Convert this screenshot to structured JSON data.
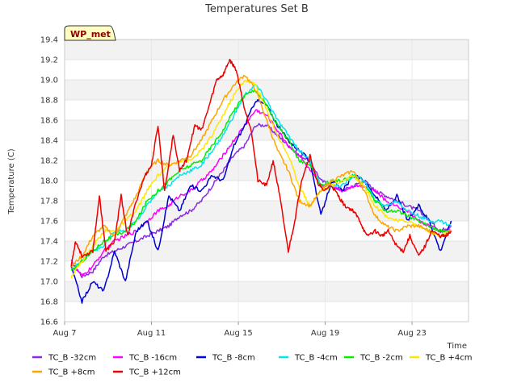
{
  "chart_data": {
    "type": "line",
    "title": "Temperatures Set B",
    "xlabel": "Time",
    "ylabel": "Temperature (C)",
    "badge": "WP_met",
    "xlim": [
      7,
      25.6
    ],
    "ylim": [
      16.6,
      19.4
    ],
    "x_ticks": [
      {
        "x": 7,
        "label": "Aug 7"
      },
      {
        "x": 11,
        "label": "Aug 11"
      },
      {
        "x": 15,
        "label": "Aug 15"
      },
      {
        "x": 19,
        "label": "Aug 19"
      },
      {
        "x": 23,
        "label": "Aug 23"
      }
    ],
    "y_ticks": [
      16.6,
      16.8,
      17.0,
      17.2,
      17.4,
      17.6,
      17.8,
      18.0,
      18.2,
      18.4,
      18.6,
      18.8,
      19.0,
      19.2,
      19.4
    ],
    "grid": true,
    "legend_position": "bottom",
    "series": [
      {
        "name": "TC_B -32cm",
        "color": "#8a2be2",
        "x": [
          7.3,
          7.8,
          8.3,
          8.8,
          9.3,
          9.8,
          10.3,
          10.8,
          11.3,
          11.8,
          12.3,
          12.8,
          13.3,
          13.8,
          14.3,
          14.8,
          15.3,
          15.8,
          16.3,
          16.8,
          17.3,
          17.8,
          18.3,
          18.8,
          19.3,
          19.8,
          20.3,
          20.8,
          21.3,
          21.8,
          22.3,
          22.8,
          23.3,
          23.8,
          24.3,
          24.8
        ],
        "y": [
          17.2,
          17.05,
          17.1,
          17.25,
          17.3,
          17.35,
          17.4,
          17.45,
          17.5,
          17.55,
          17.65,
          17.7,
          17.8,
          17.95,
          18.1,
          18.25,
          18.35,
          18.55,
          18.55,
          18.45,
          18.35,
          18.25,
          18.2,
          18.0,
          17.95,
          17.9,
          17.95,
          18.0,
          17.9,
          17.85,
          17.8,
          17.75,
          17.7,
          17.6,
          17.5,
          17.55
        ]
      },
      {
        "name": "TC_B -16cm",
        "color": "#ff00ff",
        "x": [
          7.3,
          7.8,
          8.3,
          8.8,
          9.3,
          9.8,
          10.3,
          10.8,
          11.3,
          11.8,
          12.3,
          12.8,
          13.3,
          13.8,
          14.3,
          14.8,
          15.3,
          15.8,
          16.3,
          16.8,
          17.3,
          17.8,
          18.3,
          18.8,
          19.3,
          19.8,
          20.3,
          20.8,
          21.3,
          21.8,
          22.3,
          22.8,
          23.3,
          23.8,
          24.3,
          24.8
        ],
        "y": [
          17.2,
          17.05,
          17.15,
          17.3,
          17.4,
          17.45,
          17.5,
          17.6,
          17.7,
          17.75,
          17.85,
          17.9,
          18.0,
          18.1,
          18.25,
          18.4,
          18.55,
          18.7,
          18.65,
          18.5,
          18.35,
          18.25,
          18.1,
          17.95,
          17.95,
          17.9,
          17.95,
          17.95,
          17.9,
          17.8,
          17.75,
          17.7,
          17.6,
          17.55,
          17.5,
          17.5
        ]
      },
      {
        "name": "TC_B -8cm",
        "color": "#0000cd",
        "x": [
          7.3,
          7.8,
          8.3,
          8.8,
          9.3,
          9.8,
          10.3,
          10.8,
          11.3,
          11.8,
          12.3,
          12.8,
          13.3,
          13.8,
          14.3,
          14.8,
          15.3,
          15.8,
          16.3,
          16.8,
          17.3,
          17.8,
          18.3,
          18.8,
          19.3,
          19.8,
          20.3,
          20.8,
          21.3,
          21.8,
          22.3,
          22.8,
          23.3,
          23.8,
          24.3,
          24.8
        ],
        "y": [
          17.15,
          16.8,
          17.0,
          16.9,
          17.3,
          17.0,
          17.5,
          17.6,
          17.3,
          17.85,
          17.7,
          17.95,
          17.9,
          18.05,
          18.0,
          18.35,
          18.55,
          18.8,
          18.75,
          18.55,
          18.4,
          18.3,
          18.2,
          17.65,
          18.0,
          17.9,
          18.05,
          18.0,
          17.85,
          17.7,
          17.85,
          17.6,
          17.75,
          17.6,
          17.3,
          17.6
        ]
      },
      {
        "name": "TC_B -4cm",
        "color": "#00e5ee",
        "x": [
          7.3,
          7.8,
          8.3,
          8.8,
          9.3,
          9.8,
          10.3,
          10.8,
          11.3,
          11.8,
          12.3,
          12.8,
          13.3,
          13.8,
          14.3,
          14.8,
          15.3,
          15.8,
          16.3,
          16.8,
          17.3,
          17.8,
          18.3,
          18.8,
          19.3,
          19.8,
          20.3,
          20.8,
          21.3,
          21.8,
          22.3,
          22.8,
          23.3,
          23.8,
          24.3,
          24.8
        ],
        "y": [
          17.15,
          17.2,
          17.3,
          17.35,
          17.5,
          17.5,
          17.6,
          17.75,
          17.9,
          17.95,
          18.05,
          18.1,
          18.15,
          18.3,
          18.45,
          18.65,
          18.85,
          18.95,
          18.8,
          18.6,
          18.45,
          18.3,
          18.2,
          17.95,
          17.95,
          17.95,
          18.05,
          18.0,
          17.8,
          17.75,
          17.8,
          17.7,
          17.65,
          17.6,
          17.6,
          17.55
        ]
      },
      {
        "name": "TC_B -2cm",
        "color": "#00ee00",
        "x": [
          7.3,
          7.8,
          8.3,
          8.8,
          9.3,
          9.8,
          10.3,
          10.8,
          11.3,
          11.8,
          12.3,
          12.8,
          13.3,
          13.8,
          14.3,
          14.8,
          15.3,
          15.8,
          16.3,
          16.8,
          17.3,
          17.8,
          18.3,
          18.8,
          19.3,
          19.8,
          20.3,
          20.8,
          21.3,
          21.8,
          22.3,
          22.8,
          23.3,
          23.8,
          24.3,
          24.8
        ],
        "y": [
          17.1,
          17.2,
          17.3,
          17.4,
          17.45,
          17.5,
          17.6,
          17.8,
          17.9,
          18.0,
          18.1,
          18.15,
          18.2,
          18.35,
          18.5,
          18.7,
          18.85,
          18.9,
          18.75,
          18.55,
          18.4,
          18.2,
          18.15,
          17.95,
          18.0,
          18.0,
          18.05,
          17.95,
          17.8,
          17.7,
          17.7,
          17.65,
          17.6,
          17.55,
          17.5,
          17.5
        ]
      },
      {
        "name": "TC_B +4cm",
        "color": "#ffe600",
        "x": [
          7.3,
          7.8,
          8.3,
          8.8,
          9.3,
          9.8,
          10.3,
          10.8,
          11.3,
          11.8,
          12.3,
          12.8,
          13.3,
          13.8,
          14.3,
          14.8,
          15.3,
          15.8,
          16.3,
          16.8,
          17.3,
          17.8,
          18.3,
          18.8,
          19.3,
          19.8,
          20.3,
          20.8,
          21.3,
          21.8,
          22.3,
          22.8,
          23.3,
          23.8,
          24.3,
          24.8
        ],
        "y": [
          17.05,
          17.2,
          17.35,
          17.5,
          17.5,
          17.6,
          17.7,
          17.9,
          18.05,
          18.15,
          18.2,
          18.2,
          18.3,
          18.45,
          18.65,
          18.85,
          19.0,
          18.95,
          18.7,
          18.45,
          18.25,
          17.95,
          17.75,
          17.9,
          17.95,
          18.0,
          18.05,
          17.95,
          17.75,
          17.65,
          17.6,
          17.6,
          17.55,
          17.5,
          17.45,
          17.5
        ]
      },
      {
        "name": "TC_B +8cm",
        "color": "#ffa500",
        "x": [
          7.3,
          7.8,
          8.3,
          8.8,
          9.3,
          9.8,
          10.3,
          10.8,
          11.3,
          11.8,
          12.3,
          12.8,
          13.3,
          13.8,
          14.3,
          14.8,
          15.3,
          15.8,
          16.3,
          16.8,
          17.3,
          17.8,
          18.3,
          18.8,
          19.3,
          19.8,
          20.3,
          20.8,
          21.3,
          21.8,
          22.3,
          22.8,
          23.3,
          23.8,
          24.3,
          24.8
        ],
        "y": [
          17.15,
          17.25,
          17.45,
          17.55,
          17.45,
          17.65,
          17.85,
          18.1,
          18.2,
          18.15,
          18.2,
          18.25,
          18.4,
          18.6,
          18.8,
          18.95,
          19.05,
          18.9,
          18.6,
          18.3,
          18.1,
          17.8,
          17.75,
          17.9,
          18.0,
          18.05,
          18.1,
          17.9,
          17.65,
          17.55,
          17.5,
          17.55,
          17.55,
          17.5,
          17.45,
          17.5
        ]
      },
      {
        "name": "TC_B +12cm",
        "color": "#ee0000",
        "x": [
          7.3,
          7.5,
          7.8,
          8.3,
          8.6,
          8.9,
          9.3,
          9.6,
          9.9,
          10.3,
          10.7,
          11.0,
          11.3,
          11.6,
          12.0,
          12.3,
          12.6,
          13.0,
          13.3,
          13.6,
          14.0,
          14.3,
          14.6,
          14.9,
          15.3,
          15.6,
          15.9,
          16.3,
          16.6,
          16.9,
          17.3,
          17.6,
          17.9,
          18.3,
          18.6,
          18.9,
          19.3,
          19.6,
          19.9,
          20.3,
          20.6,
          20.9,
          21.3,
          21.6,
          21.9,
          22.3,
          22.6,
          22.9,
          23.3,
          23.6,
          23.9,
          24.3,
          24.6,
          24.8
        ],
        "y": [
          17.15,
          17.4,
          17.25,
          17.3,
          17.85,
          17.3,
          17.4,
          17.85,
          17.45,
          17.8,
          18.05,
          18.15,
          18.55,
          17.9,
          18.45,
          18.1,
          18.2,
          18.55,
          18.5,
          18.7,
          19.0,
          19.05,
          19.2,
          19.1,
          18.7,
          18.5,
          18.0,
          17.95,
          18.2,
          17.85,
          17.3,
          17.6,
          18.0,
          18.25,
          18.0,
          17.9,
          17.95,
          17.85,
          17.75,
          17.7,
          17.6,
          17.45,
          17.5,
          17.45,
          17.5,
          17.35,
          17.3,
          17.45,
          17.25,
          17.35,
          17.5,
          17.45,
          17.45,
          17.5
        ]
      }
    ]
  }
}
